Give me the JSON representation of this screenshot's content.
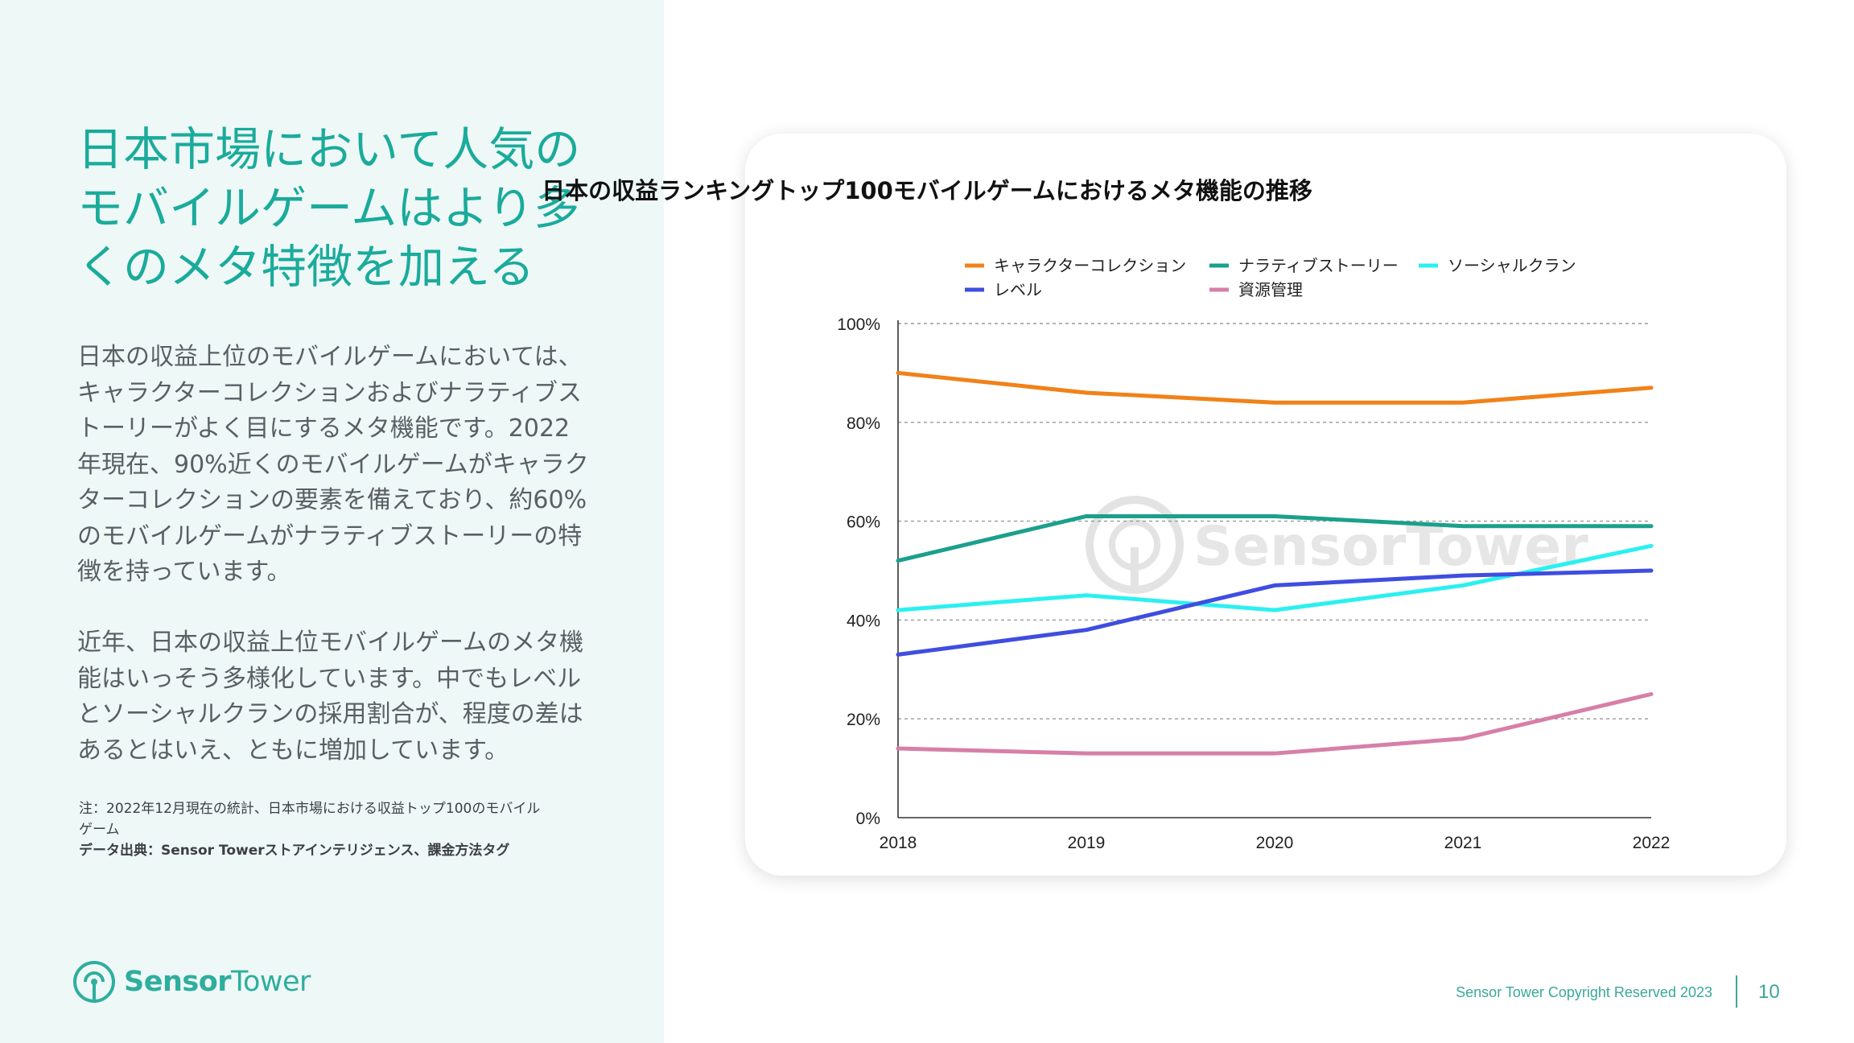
{
  "headline": {
    "lines": [
      "日本市場において人気の",
      "モバイルゲームはより多",
      "くのメタ特徴を加える"
    ]
  },
  "body": {
    "paragraph1": [
      "日本の収益上位のモバイルゲームにおいては、",
      "キャラクターコレクションおよびナラティブス",
      "トーリーがよく目にするメタ機能です。2022",
      "年現在、90%近くのモバイルゲームがキャラク",
      "ターコレクションの要素を備えており、約60%",
      "のモバイルゲームがナラティブストーリーの特",
      "徴を持っています。"
    ],
    "paragraph2": [
      "近年、日本の収益上位モバイルゲームのメタ機",
      "能はいっそう多様化しています。中でもレベル",
      "とソーシャルクランの採用割合が、程度の差は",
      "あるとはいえ、ともに増加しています。"
    ]
  },
  "notes": {
    "note_lines": [
      "注：2022年12月現在の統計、日本市場における収益トップ100のモバイル",
      "ゲーム"
    ],
    "source": "データ出典：Sensor Towerストアインテリジェンス、課金方法タグ"
  },
  "logo": {
    "icon": "sensor-tower-logo-icon",
    "text_bold": "Sensor",
    "text_regular": "Tower",
    "color": "#2fae9e"
  },
  "watermark": "SensorTower",
  "footer": {
    "copyright": "Sensor Tower Copyright Reserved 2023",
    "page_number": "10"
  },
  "colors": {
    "accent": "#1aab9b",
    "panel_bg": "#eef8f7"
  },
  "chart_data": {
    "type": "line",
    "title": "日本の収益ランキングトップ100モバイルゲームにおけるメタ機能の推移",
    "x": [
      "2018",
      "2019",
      "2020",
      "2021",
      "2022"
    ],
    "ylim": [
      0,
      100
    ],
    "yticks": [
      "0%",
      "20%",
      "40%",
      "60%",
      "80%",
      "100%"
    ],
    "grid": true,
    "legend_position": "top",
    "series": [
      {
        "name": "キャラクターコレクション",
        "color": "#f08219",
        "values": [
          90,
          86,
          84,
          84,
          87
        ]
      },
      {
        "name": "ナラティブストーリー",
        "color": "#1ba08c",
        "values": [
          52,
          61,
          61,
          59,
          59
        ]
      },
      {
        "name": "ソーシャルクラン",
        "color": "#2cf0f0",
        "values": [
          42,
          45,
          42,
          47,
          55
        ]
      },
      {
        "name": "レベル",
        "color": "#3f4de0",
        "values": [
          33,
          38,
          47,
          49,
          50
        ]
      },
      {
        "name": "資源管理",
        "color": "#d77fa8",
        "values": [
          14,
          13,
          13,
          16,
          25
        ]
      }
    ]
  }
}
